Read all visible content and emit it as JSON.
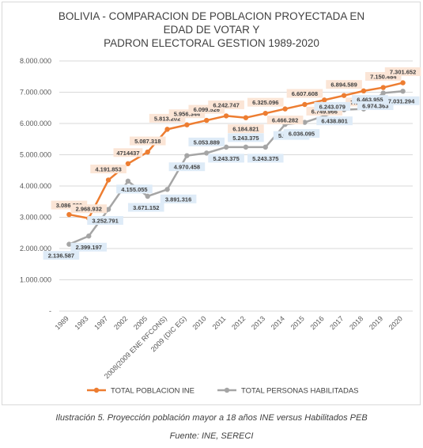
{
  "chart_data": {
    "type": "line",
    "title_lines": [
      "BOLIVIA - COMPARACION DE POBLACION PROYECTADA EN",
      "EDAD DE VOTAR Y",
      "PADRON ELECTORAL GESTION 1989-2020"
    ],
    "categories": [
      "1989",
      "1993",
      "1997",
      "2002",
      "2005",
      "2008(2009 ENE RFCONS)",
      "2009 (DIC EG)",
      "2010",
      "2011",
      "2012",
      "2013",
      "2014",
      "2015",
      "2016",
      "2017",
      "2018",
      "2019",
      "2020"
    ],
    "ylim": [
      0,
      8000000
    ],
    "yticks": [
      {
        "value": 0,
        "label": "-"
      },
      {
        "value": 1000000,
        "label": "1.000.000"
      },
      {
        "value": 2000000,
        "label": "2.000.000"
      },
      {
        "value": 3000000,
        "label": "3.000.000"
      },
      {
        "value": 4000000,
        "label": "4.000.000"
      },
      {
        "value": 5000000,
        "label": "5.000.000"
      },
      {
        "value": 6000000,
        "label": "6.000.000"
      },
      {
        "value": 7000000,
        "label": "7.000.000"
      },
      {
        "value": 8000000,
        "label": "8.000.000"
      }
    ],
    "grid": true,
    "legend_position": "bottom",
    "series": [
      {
        "name": "TOTAL POBLACION INE",
        "color": "#ed7d31",
        "label_bg": "#fbe5d6",
        "values": [
          3086880,
          2968932,
          4191853,
          4714437,
          5087318,
          5813202,
          5956344,
          6099526,
          6242747,
          6184821,
          6325096,
          6466282,
          6607608,
          6749966,
          6894589,
          7041516,
          7150484,
          7301652
        ],
        "labels": [
          "3.086.880",
          "2.968.932",
          "4.191.853",
          "4714437",
          "5.087.318",
          "5.813.202",
          "5.956.344",
          "6.099.526",
          "6.242.747",
          "6.184.821",
          "6.325.096",
          "6.466.282",
          "6.607.608",
          "6.749.966",
          "6.894.589",
          "7.041.516",
          "7.150.484",
          "7.301.652"
        ]
      },
      {
        "name": "TOTAL PERSONAS HABILITADAS",
        "color": "#a5a5a5",
        "label_bg": "#deebf7",
        "values": [
          2136587,
          2399197,
          3252791,
          4155055,
          3671152,
          3891316,
          4970458,
          5053889,
          5243375,
          5243375,
          5243375,
          5971152,
          6036095,
          6243079,
          6438801,
          6463955,
          6974363,
          7031294
        ],
        "labels": [
          "2.136.587",
          "2.399.197",
          "3.252.791",
          "4.155.055",
          "3.671.152",
          "3.891.316",
          "4.970.458",
          "5.053.889",
          "5.243.375",
          "5.243.375",
          "5.243.375",
          "5.971.152",
          "6.036.095",
          "6.243.079",
          "6.438.801",
          "6.463.955",
          "6.974.363",
          "7.031.294"
        ]
      }
    ]
  },
  "caption": "Ilustración 5. Proyección población mayor a 18 años INE versus Habilitados PEB",
  "source": "Fuente: INE, SERECI"
}
